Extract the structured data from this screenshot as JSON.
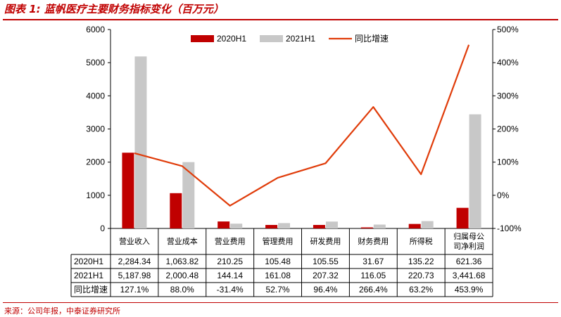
{
  "header": {
    "title": "图表 1:  蓝帆医疗主要财务指标变化（百万元）"
  },
  "footer": {
    "source": "来源：公司年报，中泰证券研究所"
  },
  "colors": {
    "series_2020H1": "#c00000",
    "series_2021H1": "#c8c8c8",
    "growth_line": "#e03c0a",
    "rule": "#c00000"
  },
  "chart_data": {
    "type": "bar",
    "combo_line": true,
    "categories": [
      [
        "营业收入"
      ],
      [
        "营业成本"
      ],
      [
        "营业费用"
      ],
      [
        "管理费用"
      ],
      [
        "研发费用"
      ],
      [
        "财务费用"
      ],
      [
        "所得税"
      ],
      [
        "归属母公",
        "司净利润"
      ]
    ],
    "series": [
      {
        "name": "2020H1",
        "axis": "left",
        "kind": "bar",
        "values": [
          2284.34,
          1063.82,
          210.25,
          105.48,
          105.55,
          31.67,
          135.22,
          621.36
        ]
      },
      {
        "name": "2021H1",
        "axis": "left",
        "kind": "bar",
        "values": [
          5187.98,
          2000.48,
          144.14,
          161.08,
          207.32,
          116.05,
          220.73,
          3441.68
        ]
      },
      {
        "name": "同比增速",
        "axis": "right",
        "kind": "line",
        "values": [
          127.1,
          88.0,
          -31.4,
          52.7,
          96.4,
          266.4,
          63.2,
          453.9
        ]
      }
    ],
    "y_left": {
      "ylim": [
        0,
        6000
      ],
      "ticks": [
        "0",
        "1000",
        "2000",
        "3000",
        "4000",
        "5000",
        "6000"
      ]
    },
    "y_right": {
      "ylim": [
        -100,
        500
      ],
      "ticks": [
        "-100%",
        "0%",
        "100%",
        "200%",
        "300%",
        "400%",
        "500%"
      ]
    },
    "legend_position": "top",
    "grid": false,
    "table": {
      "rows": [
        {
          "label": "2020H1",
          "cells": [
            "2,284.34",
            "1,063.82",
            "210.25",
            "105.48",
            "105.55",
            "31.67",
            "135.22",
            "621.36"
          ]
        },
        {
          "label": "2021H1",
          "cells": [
            "5,187.98",
            "2,000.48",
            "144.14",
            "161.08",
            "207.32",
            "116.05",
            "220.73",
            "3,441.68"
          ]
        },
        {
          "label": "同比增速",
          "cells": [
            "127.1%",
            "88.0%",
            "-31.4%",
            "52.7%",
            "96.4%",
            "266.4%",
            "63.2%",
            "453.9%"
          ]
        }
      ]
    }
  }
}
